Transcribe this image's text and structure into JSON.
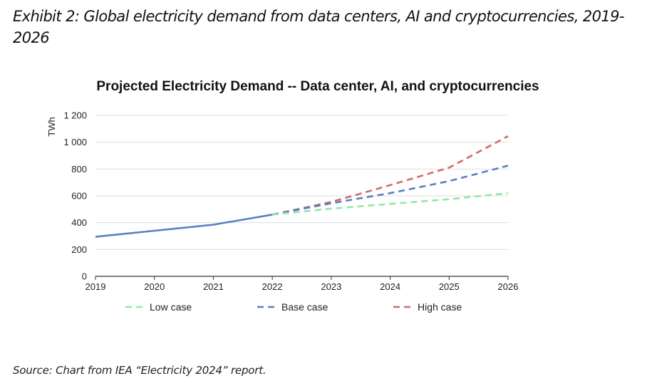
{
  "page": {
    "title": "Exhibit 2: Global electricity demand from data centers, AI and cryptocurrencies, 2019-2026",
    "source": "Source: Chart from IEA “Electricity 2024” report."
  },
  "chart_data": {
    "type": "line",
    "title": "Projected Electricity Demand -- Data center, AI, and cryptocurrencies",
    "xlabel": "",
    "ylabel": "TWh",
    "x": [
      2019,
      2020,
      2021,
      2022,
      2023,
      2024,
      2025,
      2026
    ],
    "x_tick_labels": [
      "2019",
      "2020",
      "2021",
      "2022",
      "2023",
      "2024",
      "2025",
      "2026"
    ],
    "ylim": [
      0,
      1200
    ],
    "y_ticks": [
      0,
      200,
      400,
      600,
      800,
      1000,
      1200
    ],
    "y_tick_labels": [
      "0",
      "200",
      "400",
      "600",
      "800",
      "1 000",
      "1 200"
    ],
    "grid": true,
    "legend_position": "bottom",
    "historical": {
      "x": [
        2019,
        2020,
        2021,
        2022
      ],
      "values": [
        295,
        340,
        385,
        460
      ],
      "color": "#5a7fc2",
      "style": "solid"
    },
    "series": [
      {
        "name": "Low case",
        "x": [
          2022,
          2023,
          2024,
          2025,
          2026
        ],
        "values": [
          460,
          505,
          540,
          575,
          620
        ],
        "color": "#90e8a8",
        "style": "dashed"
      },
      {
        "name": "Base case",
        "x": [
          2022,
          2023,
          2024,
          2025,
          2026
        ],
        "values": [
          460,
          545,
          620,
          710,
          825
        ],
        "color": "#5a7fc2",
        "style": "dashed"
      },
      {
        "name": "High case",
        "x": [
          2022,
          2023,
          2024,
          2025,
          2026
        ],
        "values": [
          460,
          555,
          680,
          810,
          1045
        ],
        "color": "#d46a6a",
        "style": "dashed"
      }
    ],
    "grid_color": "#dedede",
    "axis_color": "#333333"
  }
}
